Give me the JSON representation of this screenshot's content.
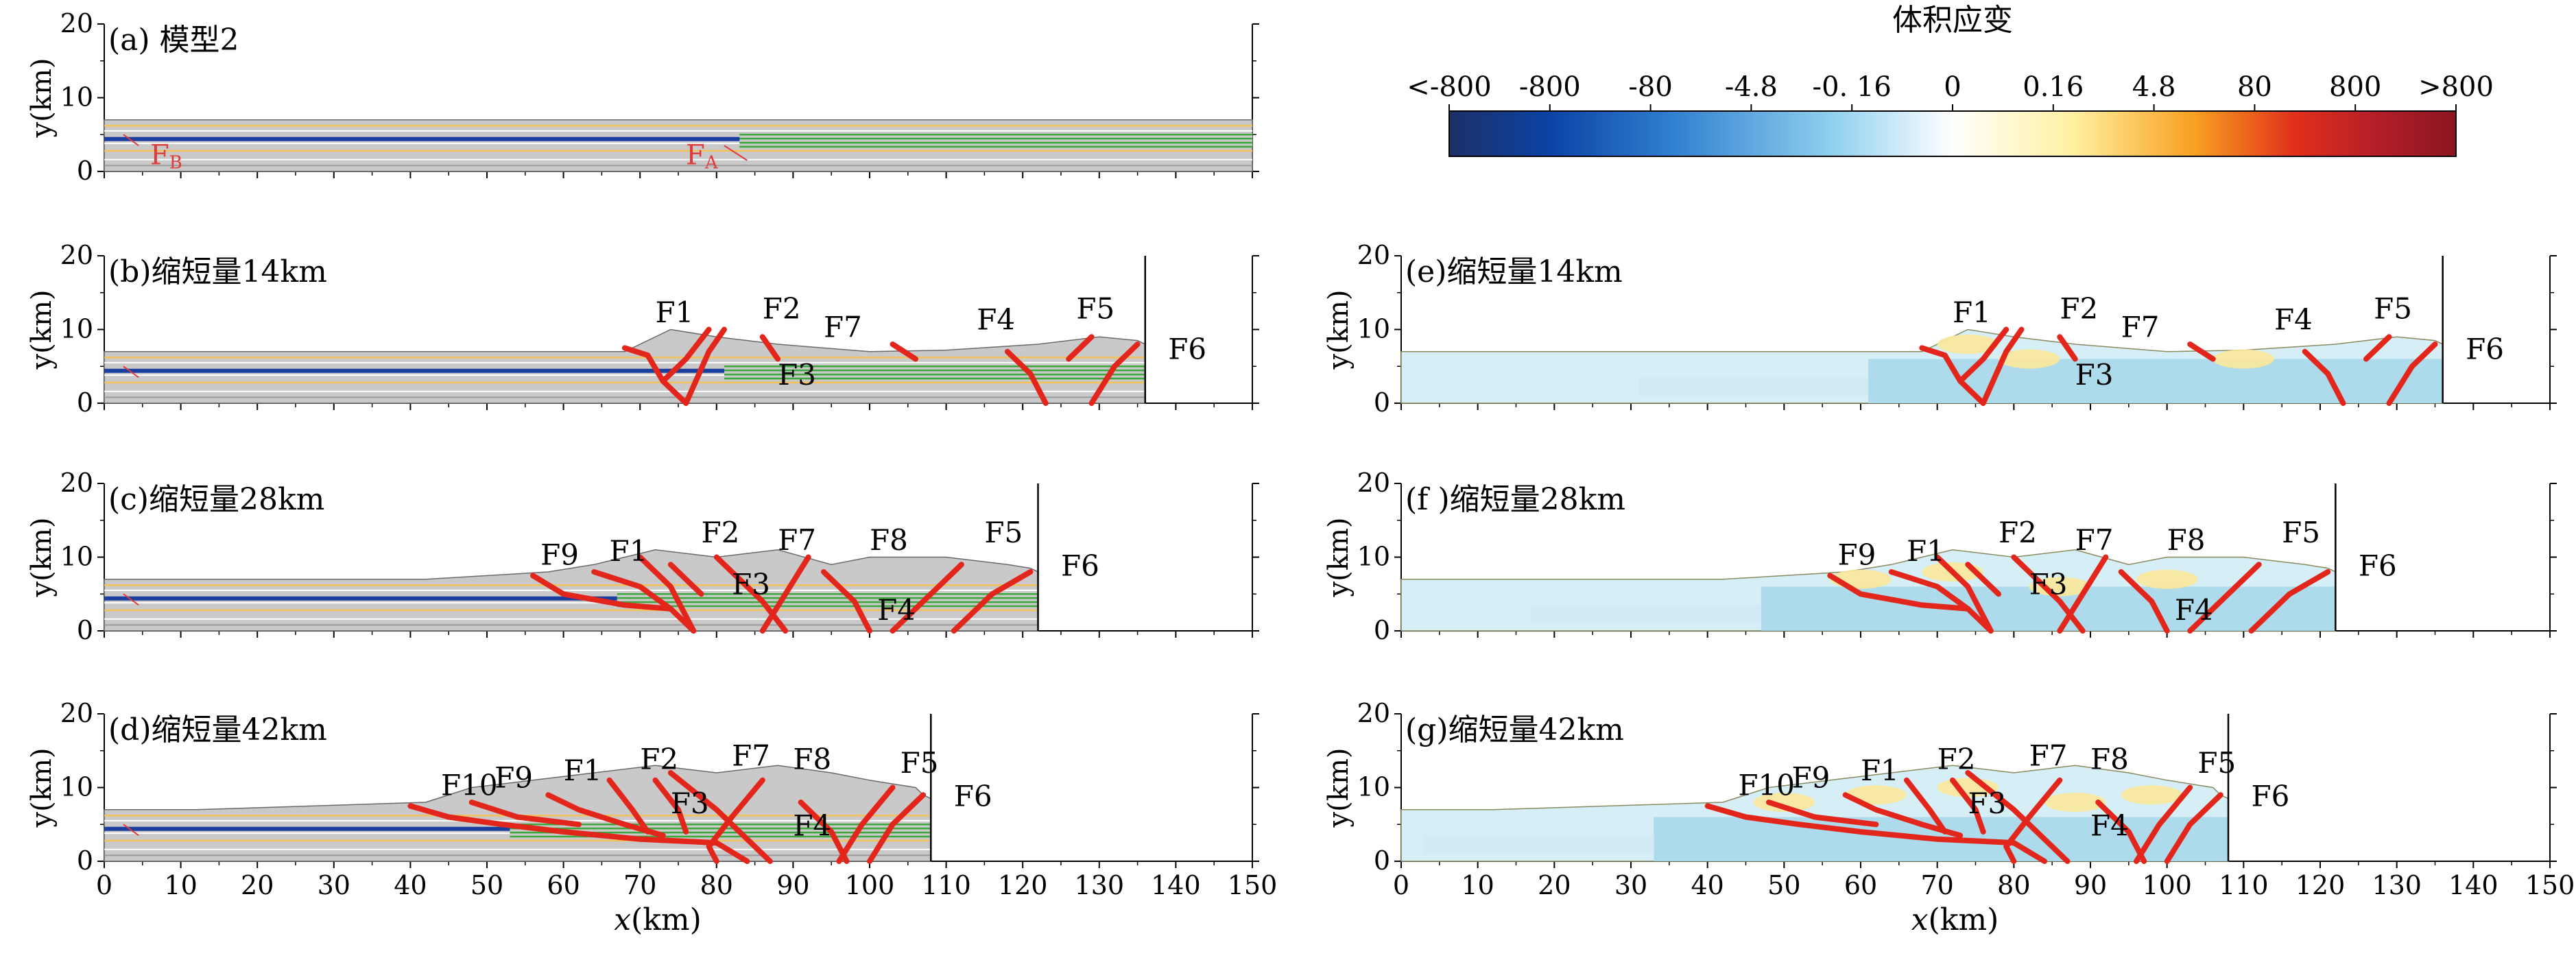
{
  "figure": {
    "colorbar": {
      "title": "体积应变",
      "tick_labels": [
        "<-800",
        "-800",
        "-80",
        "-4.8",
        "-0. 16",
        "0",
        "0.16",
        "4.8",
        "80",
        "800",
        ">800"
      ],
      "colors": [
        "#1d2f66",
        "#0b43a5",
        "#2f7fd0",
        "#8fd0ee",
        "#ffffff",
        "#fff0a0",
        "#f8a020",
        "#e0301a",
        "#b51e28",
        "#8a1622"
      ]
    },
    "axes_common": {
      "y_label": "y(km)",
      "x_label_italic": "x",
      "x_label_unit": "(km)",
      "x_ticks": [
        "0",
        "10",
        "20",
        "30",
        "40",
        "50",
        "60",
        "70",
        "80",
        "90",
        "100",
        "110",
        "120",
        "130",
        "140",
        "150"
      ],
      "y_ticks": [
        "0",
        "10",
        "20"
      ],
      "x_range": [
        0,
        150
      ],
      "y_range": [
        0,
        20
      ]
    },
    "panels": [
      {
        "id": "a",
        "title": "(a) 模型2",
        "type": "strata",
        "shortening_km": 0,
        "end_x_km": 150,
        "faults": [],
        "marks": [
          "F",
          "B",
          "F",
          "A"
        ]
      },
      {
        "id": "b",
        "title": "(b)缩短量14km",
        "type": "strata",
        "shortening_km": 14,
        "end_x_km": 136,
        "faults": [
          "F1",
          "F2",
          "F7",
          "F4",
          "F5",
          "F6",
          "F3"
        ]
      },
      {
        "id": "c",
        "title": "(c)缩短量28km",
        "type": "strata",
        "shortening_km": 28,
        "end_x_km": 122,
        "faults": [
          "F9",
          "F1",
          "F2",
          "F7",
          "F8",
          "F5",
          "F6",
          "F3",
          "F4"
        ]
      },
      {
        "id": "d",
        "title": "(d)缩短量42km",
        "type": "strata",
        "shortening_km": 42,
        "end_x_km": 108,
        "faults": [
          "F10",
          "F9",
          "F1",
          "F2",
          "F7",
          "F8",
          "F5",
          "F6",
          "F3",
          "F4"
        ]
      },
      {
        "id": "e",
        "title": "(e)缩短量14km",
        "type": "strain",
        "shortening_km": 14,
        "end_x_km": 136,
        "faults": [
          "F1",
          "F2",
          "F7",
          "F4",
          "F5",
          "F6",
          "F3"
        ]
      },
      {
        "id": "f",
        "title": "(f )缩短量28km",
        "type": "strain",
        "shortening_km": 28,
        "end_x_km": 122,
        "faults": [
          "F9",
          "F1",
          "F2",
          "F7",
          "F8",
          "F5",
          "F6",
          "F3",
          "F4"
        ]
      },
      {
        "id": "g",
        "title": "(g)缩短量42km",
        "type": "strain",
        "shortening_km": 42,
        "end_x_km": 108,
        "faults": [
          "F10",
          "F9",
          "F1",
          "F2",
          "F7",
          "F8",
          "F5",
          "F6",
          "F3",
          "F4"
        ]
      }
    ]
  }
}
